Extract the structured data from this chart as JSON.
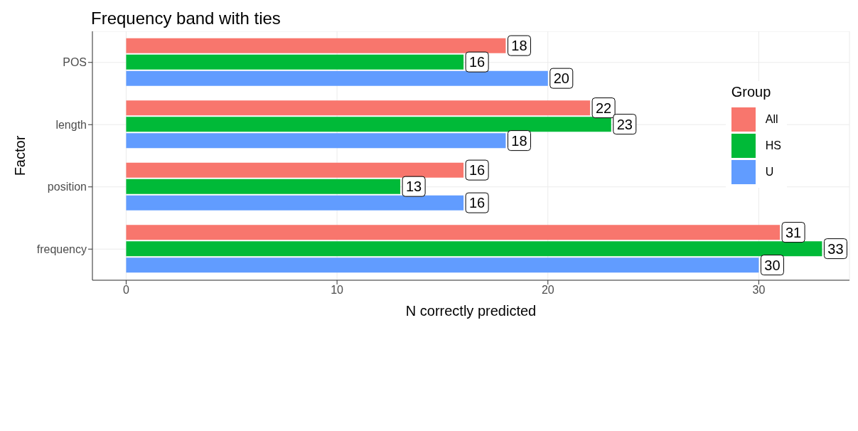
{
  "chart_data": {
    "type": "bar",
    "orientation": "horizontal",
    "title": "Frequency band with ties",
    "xlabel": "N correctly predicted",
    "ylabel": "Factor",
    "legend_title": "Group",
    "categories": [
      "POS",
      "length",
      "position",
      "frequency"
    ],
    "series": [
      {
        "name": "All",
        "color": "#f8766d",
        "values": [
          18,
          22,
          16,
          31
        ]
      },
      {
        "name": "HS",
        "color": "#00ba38",
        "values": [
          16,
          23,
          13,
          33
        ]
      },
      {
        "name": "U",
        "color": "#619cff",
        "values": [
          20,
          18,
          16,
          30
        ]
      }
    ],
    "xlim": [
      -1.6,
      34.3
    ],
    "xticks": [
      0,
      10,
      20,
      30
    ],
    "grid": true,
    "legend": "top right",
    "data_labels": true
  }
}
